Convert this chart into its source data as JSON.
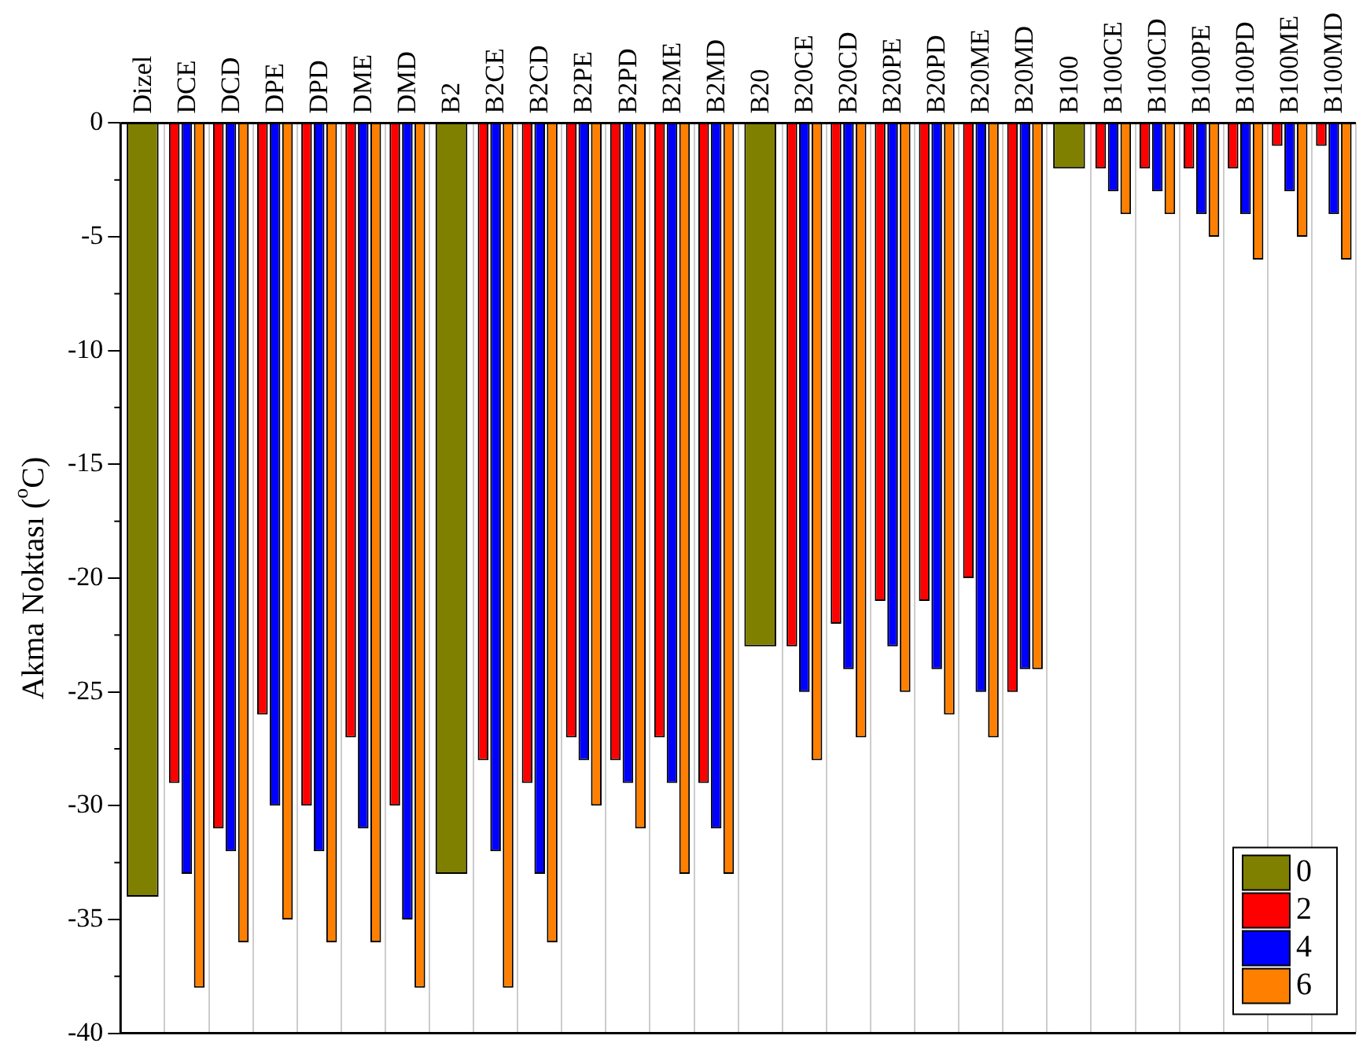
{
  "chart_data": {
    "type": "bar",
    "ylabel": "Akma Noktası ($^{o}$C)",
    "categories": [
      "Dizel",
      "DCE",
      "DCD",
      "DPE",
      "DPD",
      "DME",
      "DMD",
      "B2",
      "B2CE",
      "B2CD",
      "B2PE",
      "B2PD",
      "B2ME",
      "B2MD",
      "B20",
      "B20CE",
      "B20CD",
      "B20PE",
      "B20PD",
      "B20ME",
      "B20MD",
      "B100",
      "B100CE",
      "B100CD",
      "B100PE",
      "B100PD",
      "B100ME",
      "B100MD"
    ],
    "series": [
      {
        "name": "0",
        "color": "#808000",
        "values": [
          -34,
          null,
          null,
          null,
          null,
          null,
          null,
          -33,
          null,
          null,
          null,
          null,
          null,
          null,
          -23,
          null,
          null,
          null,
          null,
          null,
          null,
          -2,
          null,
          null,
          null,
          null,
          null,
          null
        ]
      },
      {
        "name": "2",
        "color": "#ff0000",
        "values": [
          null,
          -29,
          -31,
          -26,
          -30,
          -27,
          -30,
          null,
          -28,
          -29,
          -27,
          -28,
          -27,
          -29,
          null,
          -23,
          -22,
          -21,
          -21,
          -20,
          -25,
          null,
          -2,
          -2,
          -2,
          -2,
          -1,
          -1
        ]
      },
      {
        "name": "4",
        "color": "#0000ff",
        "values": [
          null,
          -33,
          -32,
          -30,
          -32,
          -31,
          -35,
          null,
          -32,
          -33,
          -28,
          -29,
          -29,
          -31,
          null,
          -25,
          -24,
          -23,
          -24,
          -25,
          -24,
          null,
          -3,
          -3,
          -4,
          -4,
          -3,
          -4
        ]
      },
      {
        "name": "6",
        "color": "#ff8000",
        "values": [
          null,
          -38,
          -36,
          -35,
          -36,
          -36,
          -38,
          null,
          -38,
          -36,
          -30,
          -31,
          -33,
          -33,
          null,
          -28,
          -27,
          -25,
          -26,
          -27,
          -24,
          null,
          -4,
          -4,
          -5,
          -6,
          -5,
          -6
        ]
      }
    ],
    "ylim": [
      -40,
      0
    ],
    "yticks": [
      -40,
      -35,
      -30,
      -25,
      -20,
      -15,
      -10,
      -5,
      0
    ],
    "grid": "x",
    "legend": "bottom right"
  }
}
